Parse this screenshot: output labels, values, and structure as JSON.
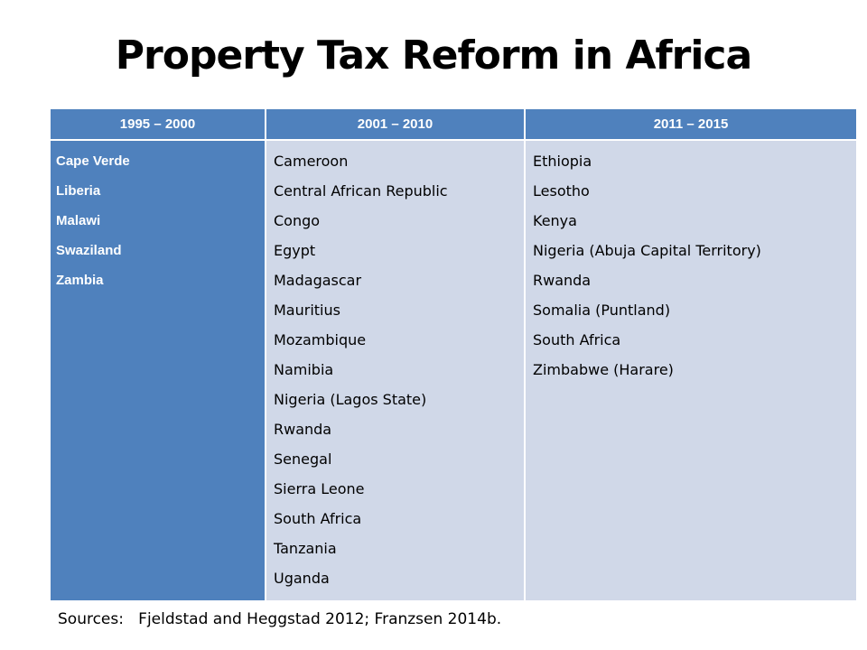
{
  "title": "Property Tax Reform in Africa",
  "colors": {
    "header_blue": "#4f81bd",
    "body_light": "#d0d8e8",
    "header_text": "#ffffff"
  },
  "table": {
    "columns": [
      {
        "header": "1995 – 2000",
        "countries": [
          "Cape Verde",
          "Liberia",
          "Malawi",
          "Swaziland",
          "Zambia"
        ]
      },
      {
        "header": "2001 – 2010",
        "countries": [
          "Cameroon",
          "Central African Republic",
          "Congo",
          "Egypt",
          "Madagascar",
          "Mauritius",
          "Mozambique",
          "Namibia",
          "Nigeria (Lagos State)",
          "Rwanda",
          "Senegal",
          "Sierra Leone",
          "South Africa",
          "Tanzania",
          "Uganda"
        ]
      },
      {
        "header": "2011 – 2015",
        "countries": [
          "Ethiopia",
          "Lesotho",
          "Kenya",
          "Nigeria (Abuja Capital Territory)",
          "Rwanda",
          "Somalia (Puntland)",
          "South Africa",
          "Zimbabwe (Harare)"
        ]
      }
    ]
  },
  "sources": "Sources:   Fjeldstad and Heggstad 2012; Franzsen 2014b."
}
